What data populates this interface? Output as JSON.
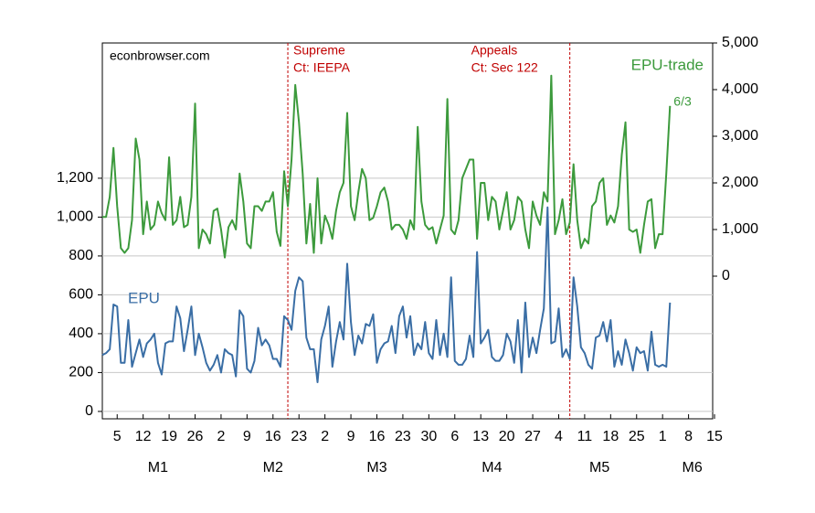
{
  "chart_data": {
    "type": "line",
    "source": "econbrowser.com",
    "x": [
      0,
      1,
      2,
      3,
      4,
      5,
      6,
      7,
      8,
      9,
      10,
      11,
      12,
      13,
      14,
      15,
      16,
      17,
      18,
      19,
      20,
      21,
      22,
      23,
      24,
      25,
      26,
      27,
      28,
      29,
      30,
      31,
      32,
      33,
      34,
      35,
      36,
      37,
      38,
      39,
      40,
      41,
      42,
      43,
      44,
      45,
      46,
      47,
      48,
      49,
      50,
      51,
      52,
      53,
      54,
      55,
      56,
      57,
      58,
      59,
      60,
      61,
      62,
      63,
      64,
      65,
      66,
      67,
      68,
      69,
      70,
      71,
      72,
      73,
      74,
      75,
      76,
      77,
      78,
      79,
      80,
      81,
      82,
      83,
      84,
      85,
      86,
      87,
      88,
      89,
      90,
      91,
      92,
      93,
      94,
      95,
      96,
      97,
      98,
      99,
      100,
      101,
      102,
      103,
      104,
      105,
      106,
      107,
      108,
      109,
      110,
      111,
      112,
      113,
      114,
      115,
      116,
      117,
      118,
      119,
      120,
      121,
      122,
      123,
      124,
      125,
      126,
      127,
      128,
      129,
      130,
      131,
      132,
      133,
      134,
      135,
      136,
      137,
      138,
      139,
      140,
      141,
      142,
      143,
      144,
      145,
      146,
      147,
      148,
      149,
      150,
      151,
      152,
      153
    ],
    "series": [
      {
        "name": "EPU",
        "color": "#3a6ea5",
        "axis": "y",
        "values": [
          290,
          300,
          320,
          550,
          540,
          250,
          250,
          470,
          230,
          300,
          370,
          280,
          350,
          370,
          400,
          250,
          190,
          350,
          360,
          360,
          540,
          480,
          310,
          420,
          540,
          290,
          400,
          330,
          250,
          210,
          240,
          290,
          200,
          320,
          300,
          290,
          180,
          520,
          490,
          220,
          200,
          260,
          430,
          340,
          370,
          340,
          270,
          270,
          230,
          490,
          470,
          420,
          620,
          690,
          670,
          380,
          320,
          320,
          150,
          370,
          440,
          540,
          230,
          360,
          460,
          370,
          760,
          460,
          290,
          390,
          350,
          450,
          440,
          500,
          250,
          320,
          350,
          360,
          440,
          300,
          490,
          540,
          380,
          490,
          290,
          350,
          320,
          460,
          300,
          270,
          470,
          290,
          400,
          280,
          690,
          260,
          240,
          240,
          270,
          390,
          280,
          820,
          350,
          380,
          420,
          280,
          260,
          260,
          290,
          400,
          360,
          250,
          470,
          200,
          560,
          280,
          380,
          300,
          420,
          530,
          1050,
          350,
          360,
          530,
          280,
          320,
          270,
          690,
          540,
          330,
          300,
          240,
          220,
          380,
          390,
          460,
          360,
          470,
          230,
          310,
          240,
          370,
          300,
          210,
          330,
          300,
          310,
          210,
          410,
          240,
          230,
          240,
          230,
          560
        ]
      },
      {
        "name": "EPU-trade",
        "color": "#3c9a3c",
        "axis": "y2",
        "values": [
          1270,
          1270,
          1700,
          2750,
          1500,
          600,
          500,
          600,
          1200,
          2950,
          2500,
          900,
          1600,
          1000,
          1100,
          1600,
          1350,
          1200,
          2550,
          1100,
          1200,
          1700,
          1050,
          1100,
          1700,
          3700,
          600,
          1000,
          900,
          700,
          1400,
          1450,
          1000,
          400,
          1050,
          1200,
          1000,
          2200,
          1600,
          700,
          600,
          1500,
          1500,
          1400,
          1600,
          1600,
          1800,
          950,
          650,
          2250,
          1500,
          2500,
          4100,
          3300,
          2200,
          700,
          1550,
          500,
          2100,
          700,
          1300,
          1100,
          800,
          1400,
          1800,
          2000,
          3500,
          1500,
          1200,
          1800,
          2300,
          2100,
          1200,
          1250,
          1500,
          1800,
          1900,
          1600,
          1000,
          1100,
          1100,
          1000,
          800,
          1200,
          1000,
          3200,
          1600,
          1100,
          1000,
          1050,
          700,
          1000,
          1300,
          3800,
          1000,
          900,
          1200,
          2100,
          2300,
          2500,
          2500,
          800,
          2000,
          2000,
          1200,
          1700,
          1600,
          1000,
          1400,
          1800,
          1000,
          1200,
          1700,
          1600,
          1000,
          600,
          1600,
          1300,
          1100,
          1800,
          1600,
          4300,
          900,
          1200,
          1650,
          900,
          1150,
          2400,
          1200,
          600,
          800,
          700,
          1500,
          1600,
          2000,
          2100,
          1100,
          1300,
          1150,
          1500,
          2600,
          3300,
          1000,
          950,
          1000,
          500,
          1100,
          1600,
          1650,
          600,
          900,
          900,
          2200,
          3650
        ]
      }
    ],
    "end_label": "6/3",
    "xlim": [
      0,
      164.5
    ],
    "xticks": [
      {
        "value": 4,
        "label": "5"
      },
      {
        "value": 11,
        "label": "12"
      },
      {
        "value": 18,
        "label": "19"
      },
      {
        "value": 25,
        "label": "26"
      },
      {
        "value": 32,
        "label": "2"
      },
      {
        "value": 39,
        "label": "9"
      },
      {
        "value": 46,
        "label": "16"
      },
      {
        "value": 53,
        "label": "23"
      },
      {
        "value": 60,
        "label": "2"
      },
      {
        "value": 67,
        "label": "9"
      },
      {
        "value": 74,
        "label": "16"
      },
      {
        "value": 81,
        "label": "23"
      },
      {
        "value": 88,
        "label": "30"
      },
      {
        "value": 95,
        "label": "6"
      },
      {
        "value": 102,
        "label": "13"
      },
      {
        "value": 109,
        "label": "20"
      },
      {
        "value": 116,
        "label": "27"
      },
      {
        "value": 123,
        "label": "4"
      },
      {
        "value": 130,
        "label": "11"
      },
      {
        "value": 137,
        "label": "18"
      },
      {
        "value": 144,
        "label": "25"
      },
      {
        "value": 151,
        "label": "1"
      },
      {
        "value": 158,
        "label": "8"
      },
      {
        "value": 165,
        "label": "15"
      }
    ],
    "month_labels": [
      {
        "value": 15,
        "label": "M1"
      },
      {
        "value": 46,
        "label": "M2"
      },
      {
        "value": 74,
        "label": "M3"
      },
      {
        "value": 105,
        "label": "M4"
      },
      {
        "value": 134,
        "label": "M5"
      },
      {
        "value": 159,
        "label": "M6"
      }
    ],
    "ylim": [
      -38,
      1896
    ],
    "yticks": [
      0,
      200,
      400,
      600,
      800,
      {
        "value": 1000,
        "label": "1,000"
      },
      {
        "value": 1200,
        "label": "1,200"
      }
    ],
    "y2lim": [
      -3059,
      5000
    ],
    "y2ticks": [
      0,
      {
        "value": 1000,
        "label": "1,000"
      },
      {
        "value": 2000,
        "label": "2,000"
      },
      {
        "value": 3000,
        "label": "3,000"
      },
      {
        "value": 4000,
        "label": "4,000"
      },
      {
        "value": 5000,
        "label": "5,000"
      }
    ],
    "grid": true,
    "annotations": [
      {
        "x": 50,
        "lines": [
          "Supreme",
          "Ct: IEEPA"
        ],
        "color": "#c00000"
      },
      {
        "x": 126,
        "lines": [
          "Appeals",
          "Ct: Sec 122"
        ],
        "color": "#c00000"
      }
    ]
  }
}
